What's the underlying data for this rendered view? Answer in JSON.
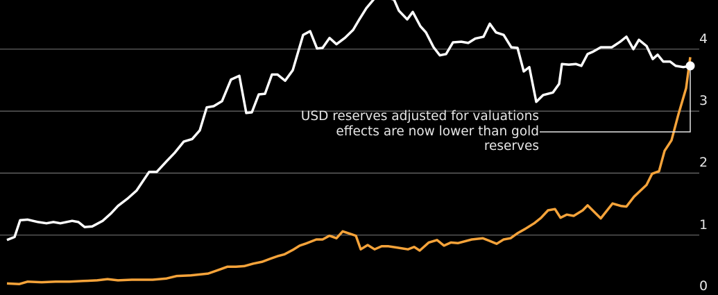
{
  "chart_data": {
    "type": "line",
    "title": "",
    "xlabel": "",
    "ylabel": "",
    "ylim": [
      0,
      4.8
    ],
    "xlim": [
      0,
      197
    ],
    "y_axis_side": "right",
    "y_ticks": [
      "0",
      "1",
      "2",
      "3",
      "4"
    ],
    "grid": true,
    "colors": {
      "background": "#000000",
      "usd": "#ffffff",
      "gold": "#f5a33a",
      "grid": "#6e6e6e"
    },
    "series": [
      {
        "name": "USD reserves (valuation adjusted)",
        "color": "#ffffff",
        "x": [
          0,
          2.2,
          3.8,
          6,
          9,
          11.4,
          13.4,
          15.4,
          18.8,
          20.6,
          22.4,
          24.6,
          27.6,
          30,
          32,
          34.8,
          37.4,
          41,
          43.2,
          46,
          48.4,
          51,
          53.4,
          55.6,
          57.6,
          59.6,
          62,
          64.6,
          67,
          69,
          70.6,
          72.6,
          74.4,
          76.4,
          78,
          80.2,
          82.4,
          85.4,
          87.4,
          89.4,
          91,
          93,
          95,
          97.4,
          99.8,
          101.6,
          103.6,
          106,
          109,
          111.6,
          113,
          115.4,
          117,
          119.2,
          120.8,
          123,
          124.8,
          126.6,
          128.6,
          131,
          133,
          135,
          137.4,
          139.2,
          141,
          143.2,
          145.4,
          147.2,
          149,
          150.6,
          152.6,
          154.6,
          157.4,
          159.2,
          160,
          162,
          164,
          165.6,
          167.4,
          169,
          171.2,
          174.4,
          176.8,
          178.6,
          180.6,
          182.2,
          184.4,
          186.2,
          187.6,
          189.2,
          191.2,
          192.8,
          195,
          197
        ],
        "values": [
          0.92,
          0.97,
          1.24,
          1.25,
          1.21,
          1.19,
          1.21,
          1.19,
          1.23,
          1.21,
          1.13,
          1.14,
          1.23,
          1.35,
          1.47,
          1.59,
          1.72,
          2.02,
          2.02,
          2.19,
          2.33,
          2.51,
          2.55,
          2.69,
          3.06,
          3.08,
          3.16,
          3.51,
          3.57,
          2.97,
          2.98,
          3.27,
          3.28,
          3.59,
          3.59,
          3.49,
          3.66,
          4.23,
          4.29,
          4.01,
          4.02,
          4.18,
          4.08,
          4.18,
          4.31,
          4.48,
          4.66,
          4.82,
          4.84,
          4.8,
          4.62,
          4.48,
          4.6,
          4.37,
          4.27,
          4.03,
          3.9,
          3.92,
          4.11,
          4.12,
          4.1,
          4.17,
          4.2,
          4.41,
          4.27,
          4.23,
          4.03,
          4.02,
          3.64,
          3.71,
          3.15,
          3.26,
          3.3,
          3.44,
          3.76,
          3.75,
          3.76,
          3.73,
          3.92,
          3.96,
          4.03,
          4.03,
          4.12,
          4.2,
          4.0,
          4.15,
          4.05,
          3.84,
          3.91,
          3.8,
          3.8,
          3.73,
          3.71,
          3.73
        ]
      },
      {
        "name": "Gold reserves",
        "color": "#f5a33a",
        "x": [
          0,
          3.6,
          6,
          10,
          14,
          18,
          22,
          26,
          29,
          32,
          36,
          42,
          46,
          49,
          53,
          58,
          61.6,
          63.6,
          66,
          68.4,
          71,
          73.6,
          76,
          78,
          80,
          82.4,
          84.4,
          86,
          89.2,
          91,
          93,
          95,
          96.8,
          99,
          100.6,
          102,
          104,
          106,
          108,
          110,
          112.4,
          115.6,
          117.4,
          119,
          121.6,
          124,
          126,
          128,
          130,
          134,
          137.2,
          139,
          141.2,
          143.2,
          145.2,
          147.2,
          149.4,
          152,
          154,
          156,
          158,
          159.6,
          161.4,
          163.4,
          166,
          167.4,
          171.2,
          174.6,
          177,
          178.6,
          180.8,
          184.4,
          186,
          188,
          189.6,
          191.6,
          193.6,
          195.8,
          197
        ],
        "values": [
          0.22,
          0.21,
          0.25,
          0.24,
          0.25,
          0.25,
          0.26,
          0.27,
          0.29,
          0.27,
          0.28,
          0.28,
          0.3,
          0.34,
          0.35,
          0.38,
          0.45,
          0.49,
          0.49,
          0.5,
          0.54,
          0.57,
          0.62,
          0.66,
          0.69,
          0.76,
          0.83,
          0.86,
          0.93,
          0.93,
          0.99,
          0.95,
          1.06,
          1.02,
          0.99,
          0.77,
          0.84,
          0.77,
          0.82,
          0.82,
          0.8,
          0.77,
          0.81,
          0.75,
          0.88,
          0.92,
          0.83,
          0.88,
          0.87,
          0.93,
          0.95,
          0.91,
          0.86,
          0.93,
          0.95,
          1.03,
          1.1,
          1.19,
          1.28,
          1.4,
          1.42,
          1.28,
          1.33,
          1.31,
          1.4,
          1.48,
          1.27,
          1.51,
          1.47,
          1.46,
          1.62,
          1.81,
          1.99,
          2.03,
          2.36,
          2.53,
          2.95,
          3.37,
          3.87
        ]
      }
    ],
    "annotation": {
      "lines": [
        "USD reserves adjusted for valuations",
        "effects are now lower than gold",
        "reserves"
      ],
      "points_to": {
        "series": 0,
        "x": 197,
        "value": 3.73
      }
    }
  }
}
